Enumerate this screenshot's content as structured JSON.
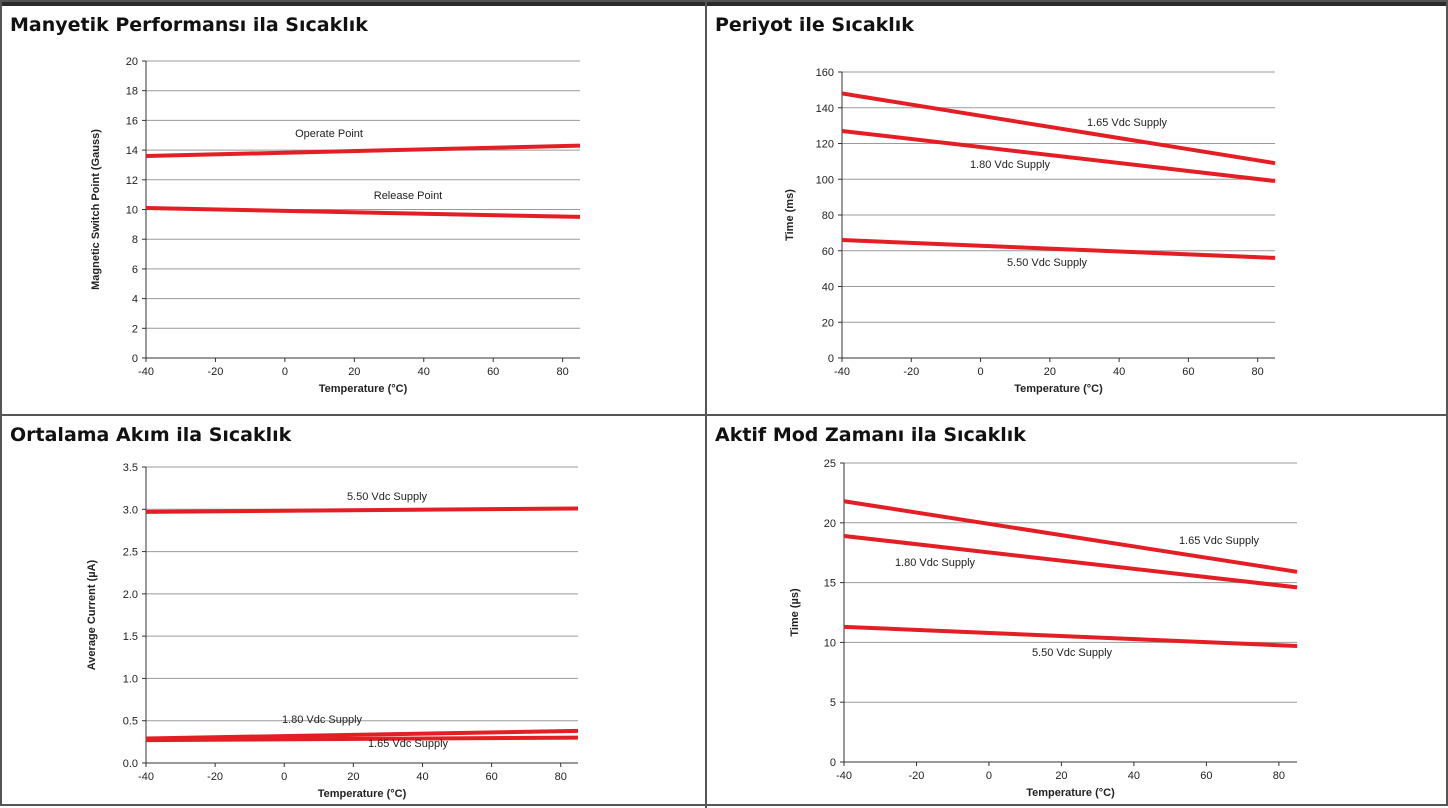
{
  "page": {
    "background": "#ffffff",
    "line_color": "#e31e24",
    "grid_color": "#9a9a9a"
  },
  "chart_data": [
    {
      "type": "line",
      "title": "Manyetik Performansı ila Sıcaklık",
      "xlabel": "Temperature (°C)",
      "ylabel": "Magnetic Switch Point (Gauss)",
      "xlim": [
        -40,
        85
      ],
      "ylim": [
        0,
        20
      ],
      "xticks": [
        -40,
        -20,
        0,
        20,
        40,
        60,
        80
      ],
      "yticks": [
        0,
        2,
        4,
        6,
        8,
        10,
        12,
        14,
        16,
        18,
        20
      ],
      "ytick_labels": [
        "0",
        "2",
        "4",
        "6",
        "8",
        "10",
        "12",
        "14",
        "16",
        "18",
        "20"
      ],
      "grid": true,
      "series": [
        {
          "name": "Operate Point",
          "x": [
            -40,
            85
          ],
          "y": [
            13.6,
            14.3
          ]
        },
        {
          "name": "Release Point",
          "x": [
            -40,
            85
          ],
          "y": [
            10.1,
            9.5
          ]
        }
      ]
    },
    {
      "type": "line",
      "title": "Periyot ile Sıcaklık",
      "xlabel": "Temperature (°C)",
      "ylabel": "Time (ms)",
      "xlim": [
        -40,
        85
      ],
      "ylim": [
        0,
        160
      ],
      "xticks": [
        -40,
        -20,
        0,
        20,
        40,
        60,
        80
      ],
      "yticks": [
        0,
        20,
        40,
        60,
        80,
        100,
        120,
        140,
        160
      ],
      "ytick_labels": [
        "0",
        "20",
        "40",
        "60",
        "80",
        "100",
        "120",
        "140",
        "160"
      ],
      "grid": true,
      "series": [
        {
          "name": "1.65 Vdc Supply",
          "x": [
            -40,
            85
          ],
          "y": [
            148,
            109
          ]
        },
        {
          "name": "1.80 Vdc Supply",
          "x": [
            -40,
            85
          ],
          "y": [
            127,
            99
          ]
        },
        {
          "name": "5.50 Vdc Supply",
          "x": [
            -40,
            85
          ],
          "y": [
            66,
            56
          ]
        }
      ]
    },
    {
      "type": "line",
      "title": "Ortalama Akım ila Sıcaklık",
      "xlabel": "Temperature (°C)",
      "ylabel": "Average Current  (µA)",
      "xlim": [
        -40,
        85
      ],
      "ylim": [
        0,
        3.5
      ],
      "xticks": [
        -40,
        -20,
        0,
        20,
        40,
        60,
        80
      ],
      "yticks": [
        0,
        0.5,
        1,
        1.5,
        2,
        2.5,
        3,
        3.5
      ],
      "ytick_labels": [
        "0.0",
        "0.5",
        "1.0",
        "1.5",
        "2.0",
        "2.5",
        "3.0",
        "3.5"
      ],
      "grid": true,
      "series": [
        {
          "name": "5.50 Vdc Supply",
          "x": [
            -40,
            85
          ],
          "y": [
            2.97,
            3.01
          ]
        },
        {
          "name": "1.80 Vdc Supply",
          "x": [
            -40,
            85
          ],
          "y": [
            0.29,
            0.38
          ]
        },
        {
          "name": "1.65 Vdc Supply",
          "x": [
            -40,
            85
          ],
          "y": [
            0.27,
            0.3
          ]
        }
      ]
    },
    {
      "type": "line",
      "title": "Aktif Mod Zamanı ila Sıcaklık",
      "xlabel": "Temperature (°C)",
      "ylabel": "Time (µs)",
      "xlim": [
        -40,
        85
      ],
      "ylim": [
        0,
        25
      ],
      "xticks": [
        -40,
        -20,
        0,
        20,
        40,
        60,
        80
      ],
      "yticks": [
        0,
        5,
        10,
        15,
        20,
        25
      ],
      "ytick_labels": [
        "0",
        "5",
        "10",
        "15",
        "20",
        "25"
      ],
      "grid": true,
      "series": [
        {
          "name": "1.65 Vdc Supply",
          "x": [
            -40,
            85
          ],
          "y": [
            21.8,
            15.9
          ]
        },
        {
          "name": "1.80 Vdc Supply",
          "x": [
            -40,
            85
          ],
          "y": [
            18.9,
            14.6
          ]
        },
        {
          "name": "5.50 Vdc Supply",
          "x": [
            -40,
            85
          ],
          "y": [
            11.3,
            9.7
          ]
        }
      ]
    }
  ]
}
